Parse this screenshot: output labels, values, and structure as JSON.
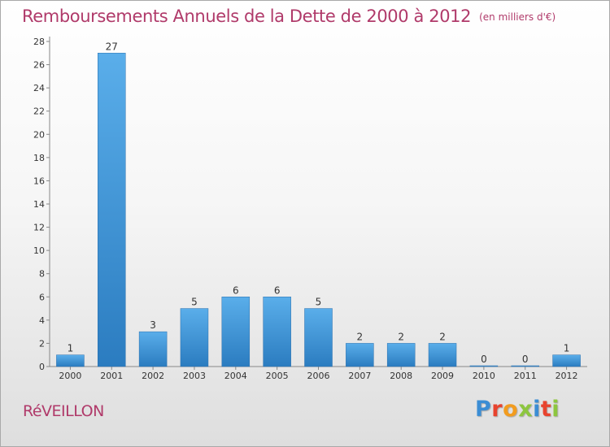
{
  "header": {
    "title": "Remboursements Annuels de la Dette de 2000 à 2012",
    "unit": "(en milliers d'€)"
  },
  "footer": {
    "commune": "RéVEILLON",
    "brand": "Proxiti"
  },
  "colors": {
    "title": "#b03a6a",
    "bar_light": "#5aaeea",
    "bar_dark": "#2b7cc0",
    "brand": [
      "#3b8dd4",
      "#e8432e",
      "#f29c1f",
      "#8dc63f",
      "#3b8dd4",
      "#e8432e",
      "#8dc63f"
    ]
  },
  "chart_data": {
    "type": "bar",
    "categories": [
      "2000",
      "2001",
      "2002",
      "2003",
      "2004",
      "2005",
      "2006",
      "2007",
      "2008",
      "2009",
      "2010",
      "2011",
      "2012"
    ],
    "values": [
      1,
      27,
      3,
      5,
      6,
      6,
      5,
      2,
      2,
      2,
      0,
      0,
      1
    ],
    "data_labels": [
      "1",
      "27",
      "3",
      "5",
      "6",
      "6",
      "5",
      "2",
      "2",
      "2",
      "0",
      "0",
      "1"
    ],
    "yticks": [
      0,
      2,
      4,
      6,
      8,
      10,
      12,
      14,
      16,
      18,
      20,
      22,
      24,
      26,
      28
    ],
    "ylim": [
      0,
      28
    ],
    "grid": false,
    "legend": "none"
  }
}
